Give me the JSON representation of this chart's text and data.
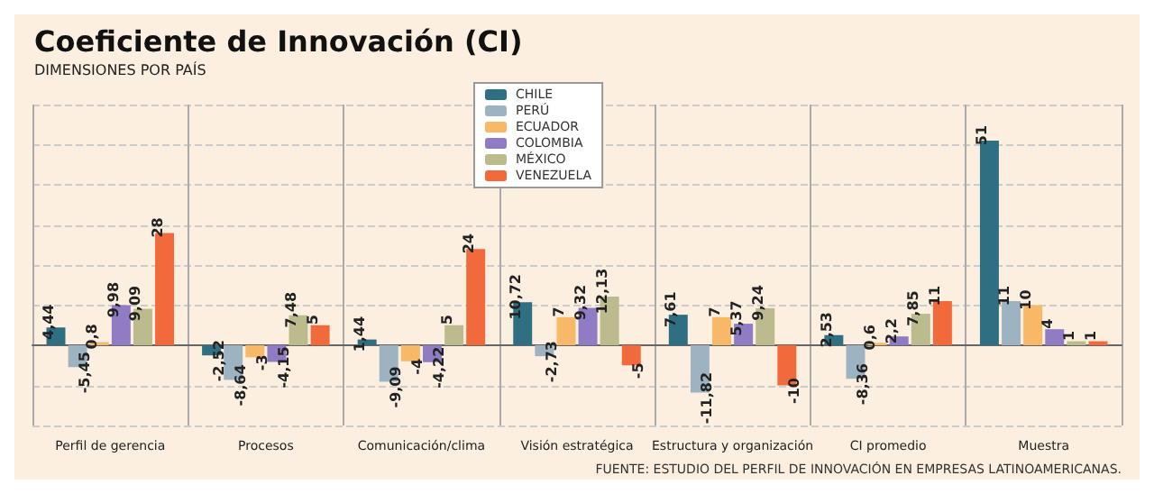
{
  "chart_data": {
    "type": "bar",
    "title": "Coeficiente de Innovación (CI)",
    "subtitle": "DIMENSIONES POR PAÍS",
    "categories": [
      "Perfil de gerencia",
      "Procesos",
      "Comunicación/clima",
      "Visión estratégica",
      "Estructura y organización",
      "CI promedio",
      "Muestra"
    ],
    "series": [
      {
        "name": "CHILE",
        "color": "#2f6f82",
        "values": [
          4.44,
          -2.52,
          1.44,
          10.72,
          7.61,
          2.53,
          51
        ],
        "value_labels": [
          "4,44",
          "-2,52",
          "1,44",
          "10,72",
          "7,61",
          "2,53",
          "51"
        ]
      },
      {
        "name": "PERÚ",
        "color": "#9db3c2",
        "values": [
          -5.45,
          -8.64,
          -9.09,
          -2.73,
          -11.82,
          -8.36,
          11
        ],
        "value_labels": [
          "-5,45",
          "-8,64",
          "-9,09",
          "-2,73",
          "-11,82",
          "-8,36",
          "11"
        ]
      },
      {
        "name": "ECUADOR",
        "color": "#f7b968",
        "values": [
          0.8,
          -3,
          -4,
          7,
          7,
          0.6,
          10
        ],
        "value_labels": [
          "0,8",
          "-3",
          "-4",
          "7",
          "7",
          "0,6",
          "10"
        ]
      },
      {
        "name": "COLOMBIA",
        "color": "#8f7cc4",
        "values": [
          9.98,
          -4.15,
          -4.22,
          9.32,
          5.37,
          2.2,
          4
        ],
        "value_labels": [
          "9,98",
          "-4,15",
          "-4,22",
          "9,32",
          "5,37",
          "2,2",
          "4"
        ]
      },
      {
        "name": "MÉXICO",
        "color": "#bcbb8e",
        "values": [
          9.09,
          7.48,
          5,
          12.13,
          9.24,
          7.85,
          1
        ],
        "value_labels": [
          "9,09",
          "7,48",
          "5",
          "12,13",
          "9,24",
          "7,85",
          "1"
        ]
      },
      {
        "name": "VENEZUELA",
        "color": "#f26a3b",
        "values": [
          28,
          5,
          24,
          -5,
          -10,
          11,
          1
        ],
        "value_labels": [
          "28",
          "5",
          "24",
          "-5",
          "-10",
          "11",
          "1"
        ]
      }
    ],
    "grid": true,
    "legend": "top",
    "annotations": [
      "FUENTE: ESTUDIO DEL PERFIL DE INNOVACIÓN EN EMPRESAS LATINOAMERICANAS."
    ]
  }
}
